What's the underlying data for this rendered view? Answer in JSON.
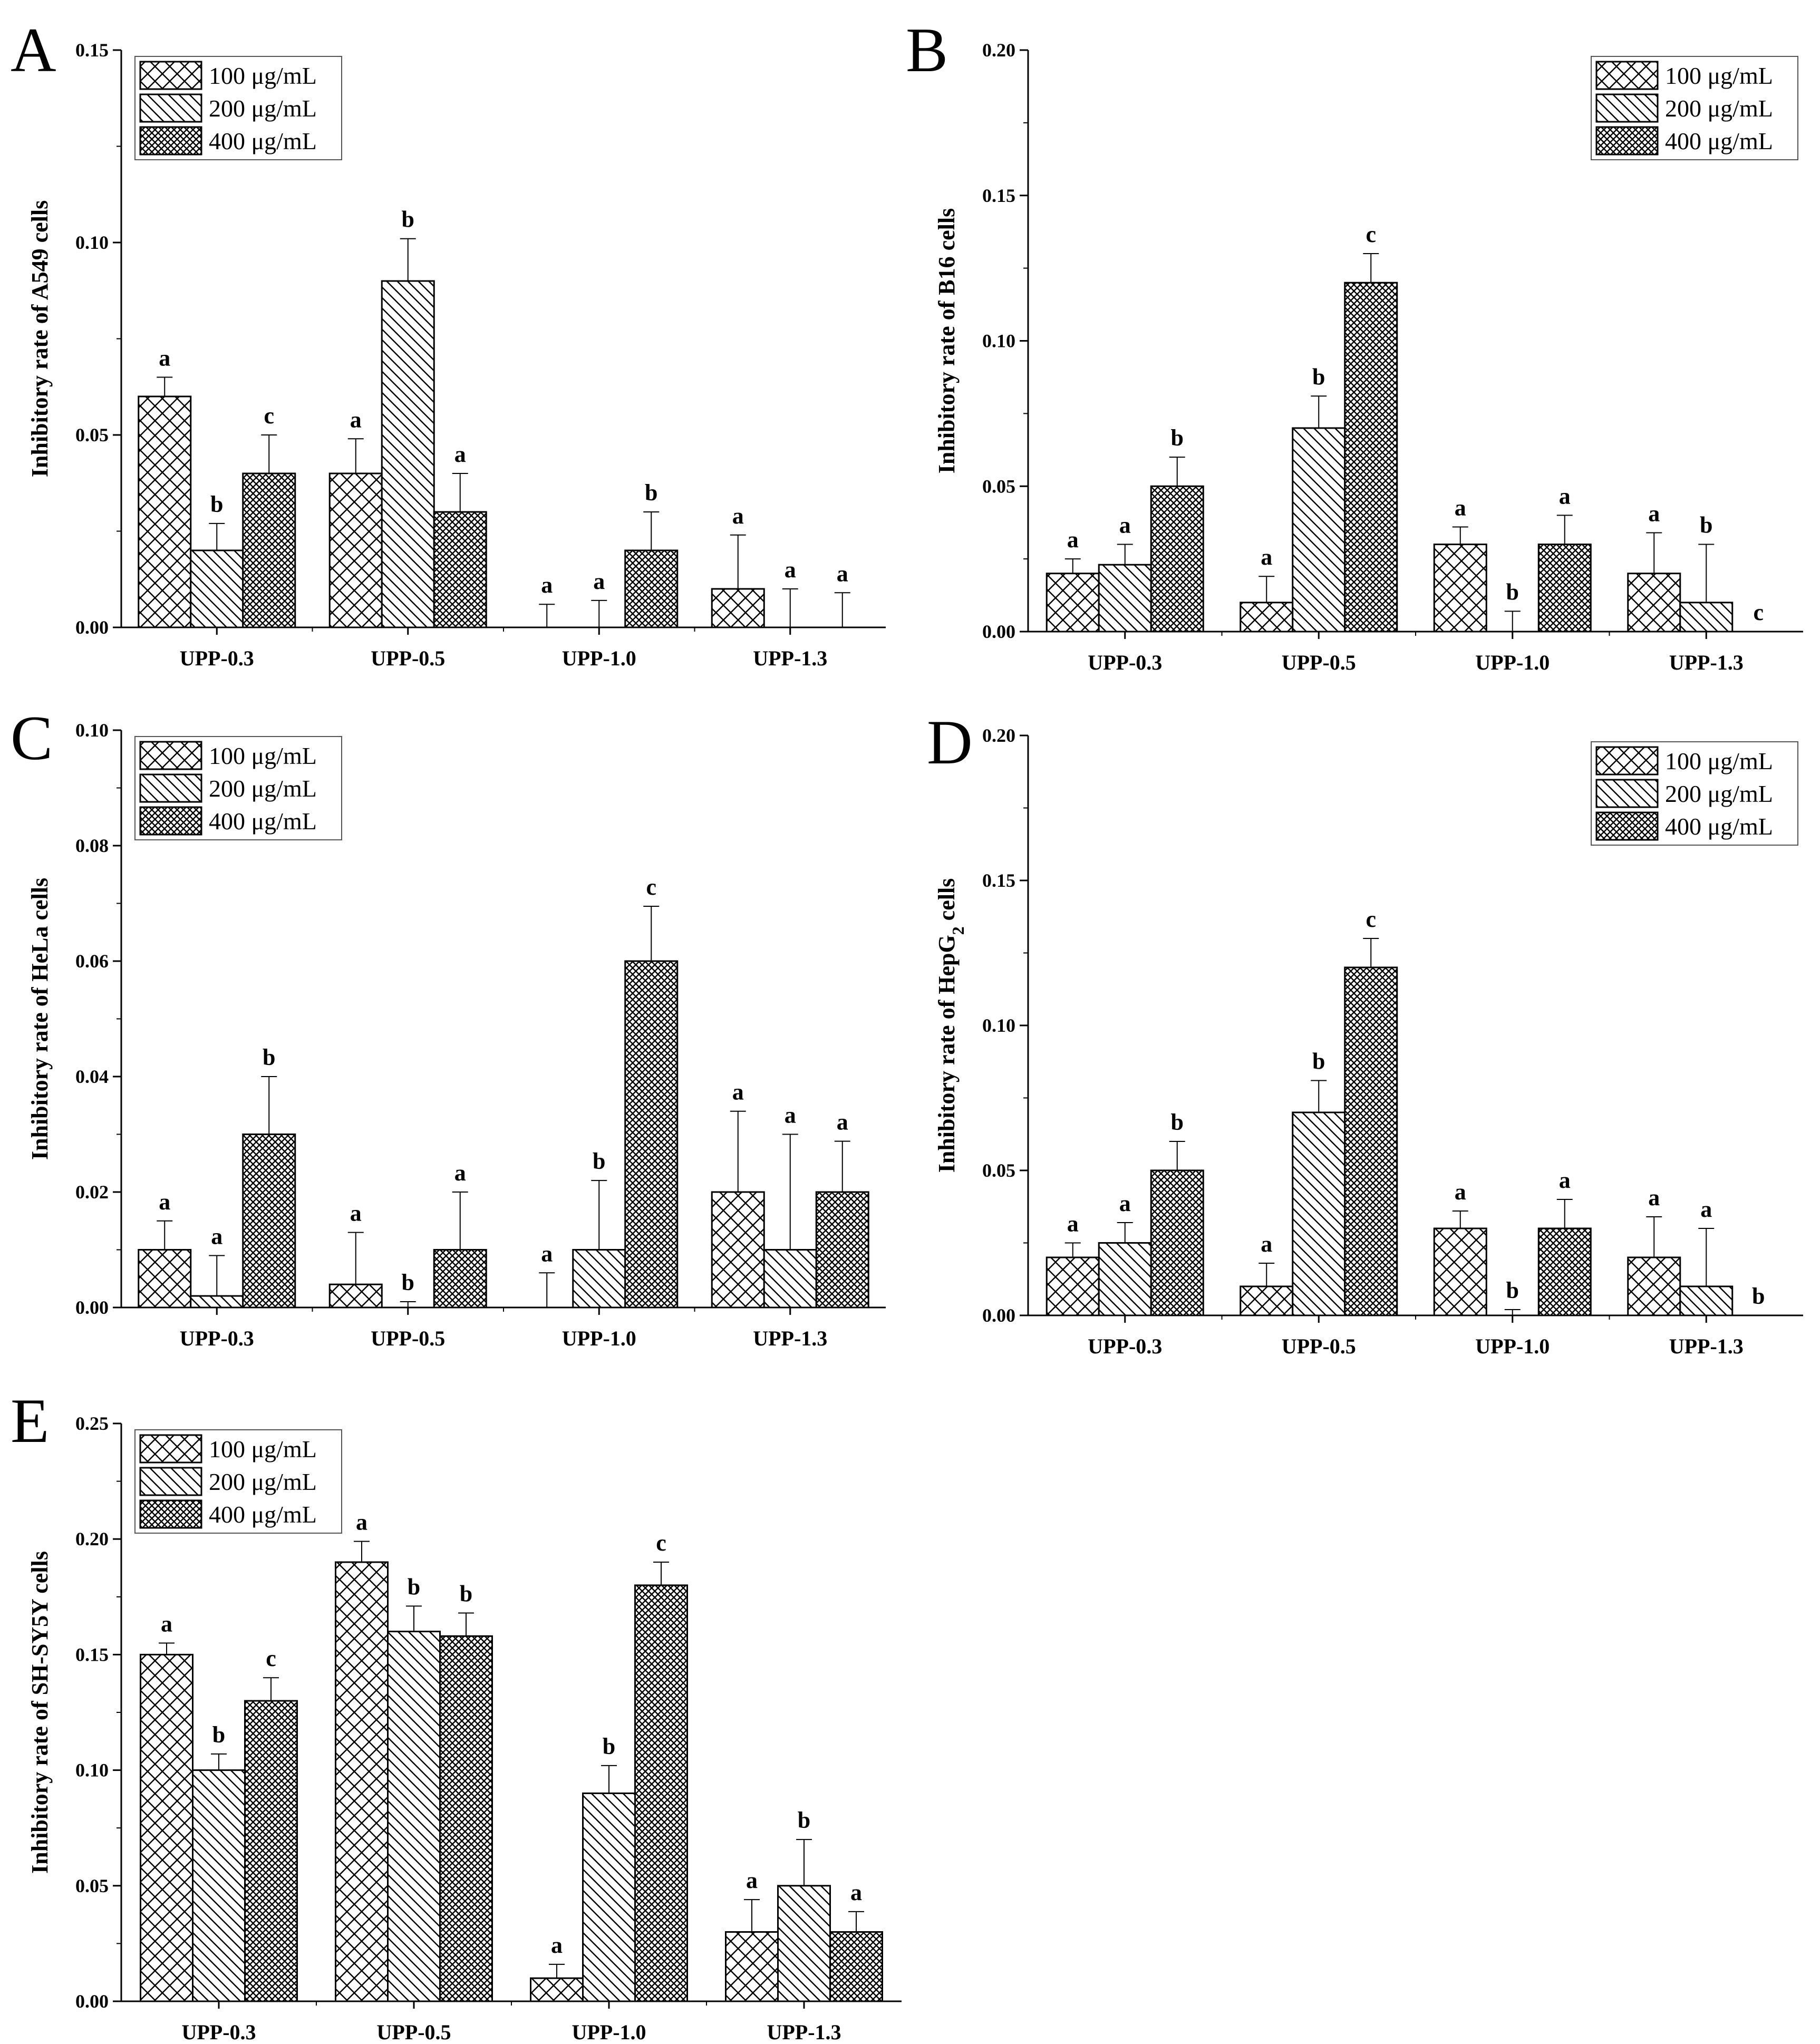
{
  "figure": {
    "series_names": [
      "100 μg/mL",
      "200 μg/mL",
      "400 μg/mL"
    ],
    "pattern_names": [
      "crosshatch",
      "diagonal",
      "dense-checker"
    ],
    "colors": {
      "ink": "#000000",
      "background": "#ffffff"
    }
  },
  "chart_data": [
    {
      "id": "A",
      "type": "bar",
      "panel_letter": "A",
      "ylabel": "Inhibitory rate of  A549 cells",
      "ylim": [
        0,
        0.15
      ],
      "yticks": [
        0,
        0.05,
        0.1,
        0.15
      ],
      "ytick_labels": [
        "0.00",
        "0.05",
        "0.10",
        "0.15"
      ],
      "categories": [
        "UPP-0.3",
        "UPP-0.5",
        "UPP-1.0",
        "UPP-1.3"
      ],
      "legend_position": "top-left",
      "series": [
        {
          "name": "100 μg/mL",
          "values": [
            0.06,
            0.04,
            0,
            0.01
          ],
          "errors": [
            0.005,
            0.009,
            0.006,
            0.014
          ],
          "labels": [
            "a",
            "a",
            "a",
            "a"
          ]
        },
        {
          "name": "200 μg/mL",
          "values": [
            0.02,
            0.09,
            0,
            0
          ],
          "errors": [
            0.007,
            0.011,
            0.007,
            0.01
          ],
          "labels": [
            "b",
            "b",
            "a",
            "a"
          ]
        },
        {
          "name": "400 μg/mL",
          "values": [
            0.04,
            0.03,
            0.02,
            0
          ],
          "errors": [
            0.01,
            0.01,
            0.01,
            0.009
          ],
          "labels": [
            "c",
            "a",
            "b",
            "a"
          ]
        }
      ]
    },
    {
      "id": "B",
      "type": "bar",
      "panel_letter": "B",
      "ylabel": "Inhibitory rate of B16 cells",
      "ylim": [
        0,
        0.2
      ],
      "yticks": [
        0,
        0.05,
        0.1,
        0.15,
        0.2
      ],
      "ytick_labels": [
        "0.00",
        "0.05",
        "0.10",
        "0.15",
        "0.20"
      ],
      "categories": [
        "UPP-0.3",
        "UPP-0.5",
        "UPP-1.0",
        "UPP-1.3"
      ],
      "legend_position": "top-right",
      "series": [
        {
          "name": "100 μg/mL",
          "values": [
            0.02,
            0.01,
            0.03,
            0.02
          ],
          "errors": [
            0.005,
            0.009,
            0.006,
            0.014
          ],
          "labels": [
            "a",
            "a",
            "a",
            "a"
          ]
        },
        {
          "name": "200 μg/mL",
          "values": [
            0.023,
            0.07,
            0,
            0.01
          ],
          "errors": [
            0.007,
            0.011,
            0.007,
            0.02
          ],
          "labels": [
            "a",
            "b",
            "b",
            "b"
          ]
        },
        {
          "name": "400 μg/mL",
          "values": [
            0.05,
            0.12,
            0.03,
            0
          ],
          "errors": [
            0.01,
            0.01,
            0.01,
            0
          ],
          "labels": [
            "b",
            "c",
            "a",
            "c"
          ]
        }
      ]
    },
    {
      "id": "C",
      "type": "bar",
      "panel_letter": "C",
      "ylabel": "Inhibitory rate of HeLa cells",
      "ylim": [
        0,
        0.1
      ],
      "yticks": [
        0,
        0.02,
        0.04,
        0.06,
        0.08,
        0.1
      ],
      "ytick_labels": [
        "0.00",
        "0.02",
        "0.04",
        "0.06",
        "0.08",
        "0.10"
      ],
      "categories": [
        "UPP-0.3",
        "UPP-0.5",
        "UPP-1.0",
        "UPP-1.3"
      ],
      "legend_position": "top-left",
      "series": [
        {
          "name": "100 μg/mL",
          "values": [
            0.01,
            0.004,
            0,
            0.02
          ],
          "errors": [
            0.005,
            0.009,
            0.006,
            0.014
          ],
          "labels": [
            "a",
            "a",
            "a",
            "a"
          ]
        },
        {
          "name": "200 μg/mL",
          "values": [
            0.002,
            0,
            0.01,
            0.01
          ],
          "errors": [
            0.007,
            0.001,
            0.012,
            0.02
          ],
          "labels": [
            "a",
            "b",
            "b",
            "a"
          ]
        },
        {
          "name": "400 μg/mL",
          "values": [
            0.03,
            0.01,
            0.06,
            0.02
          ],
          "errors": [
            0.01,
            0.01,
            0.0095,
            0.0088
          ],
          "labels": [
            "b",
            "a",
            "c",
            "a"
          ]
        }
      ]
    },
    {
      "id": "D",
      "type": "bar",
      "panel_letter": "D",
      "ylabel": "Inhibitory rate of HepG",
      "ylabel_subscript": "2",
      "ylabel_suffix": " cells",
      "ylim": [
        0,
        0.2
      ],
      "yticks": [
        0,
        0.05,
        0.1,
        0.15,
        0.2
      ],
      "ytick_labels": [
        "0.00",
        "0.05",
        "0.10",
        "0.15",
        "0.20"
      ],
      "categories": [
        "UPP-0.3",
        "UPP-0.5",
        "UPP-1.0",
        "UPP-1.3"
      ],
      "legend_position": "top-right",
      "series": [
        {
          "name": "100 μg/mL",
          "values": [
            0.02,
            0.01,
            0.03,
            0.02
          ],
          "errors": [
            0.005,
            0.008,
            0.006,
            0.014
          ],
          "labels": [
            "a",
            "a",
            "a",
            "a"
          ]
        },
        {
          "name": "200 μg/mL",
          "values": [
            0.025,
            0.07,
            0,
            0.01
          ],
          "errors": [
            0.007,
            0.011,
            0.002,
            0.02
          ],
          "labels": [
            "a",
            "b",
            "b",
            "a"
          ]
        },
        {
          "name": "400 μg/mL",
          "values": [
            0.05,
            0.12,
            0.03,
            0
          ],
          "errors": [
            0.01,
            0.01,
            0.01,
            0
          ],
          "labels": [
            "b",
            "c",
            "a",
            "b"
          ]
        }
      ]
    },
    {
      "id": "E",
      "type": "bar",
      "panel_letter": "E",
      "ylabel": "Inhibitory rate of SH-SY5Y cells",
      "ylim": [
        0,
        0.25
      ],
      "yticks": [
        0,
        0.05,
        0.1,
        0.15,
        0.2,
        0.25
      ],
      "ytick_labels": [
        "0.00",
        "0.05",
        "0.10",
        "0.15",
        "0.20",
        "0.25"
      ],
      "categories": [
        "UPP-0.3",
        "UPP-0.5",
        "UPP-1.0",
        "UPP-1.3"
      ],
      "legend_position": "top-left",
      "series": [
        {
          "name": "100 μg/mL",
          "values": [
            0.15,
            0.19,
            0.01,
            0.03
          ],
          "errors": [
            0.005,
            0.009,
            0.006,
            0.014
          ],
          "labels": [
            "a",
            "a",
            "a",
            "a"
          ]
        },
        {
          "name": "200 μg/mL",
          "values": [
            0.1,
            0.16,
            0.09,
            0.05
          ],
          "errors": [
            0.007,
            0.011,
            0.012,
            0.02
          ],
          "labels": [
            "b",
            "b",
            "b",
            "b"
          ]
        },
        {
          "name": "400 μg/mL",
          "values": [
            0.13,
            0.158,
            0.18,
            0.03
          ],
          "errors": [
            0.01,
            0.01,
            0.01,
            0.0088
          ],
          "labels": [
            "c",
            "b",
            "c",
            "a"
          ]
        }
      ]
    }
  ]
}
